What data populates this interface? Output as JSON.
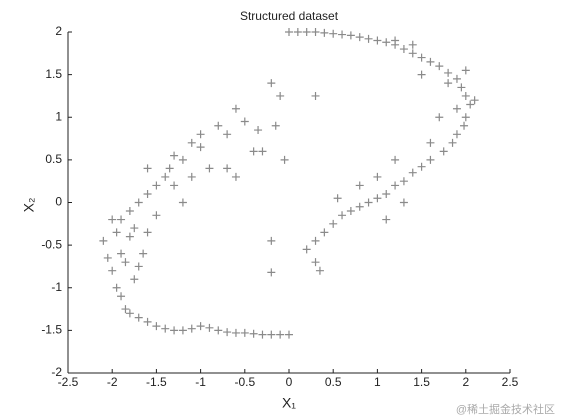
{
  "chart_data": {
    "type": "scatter",
    "title": "Structured dataset",
    "xlabel": "X₁",
    "ylabel": "X₂",
    "watermark": "@稀土掘金技术社区",
    "color": "#8a8a8a",
    "xlim": [
      -2.5,
      2.5
    ],
    "ylim": [
      -2,
      2
    ],
    "xticks": [
      -2.5,
      -2,
      -1.5,
      -1,
      -0.5,
      0,
      0.5,
      1,
      1.5,
      2,
      2.5
    ],
    "yticks": [
      -2,
      -1.5,
      -1,
      -0.5,
      0,
      0.5,
      1,
      1.5,
      2
    ],
    "x": [
      0,
      0.1,
      0.2,
      0.3,
      0.4,
      0.5,
      0.6,
      0.7,
      0.8,
      0.9,
      1.0,
      1.1,
      1.2,
      1.3,
      1.4,
      1.5,
      1.6,
      1.7,
      1.8,
      1.9,
      1.95,
      2.0,
      2.05,
      2.1,
      2.0,
      1.98,
      1.9,
      1.85,
      1.75,
      1.6,
      1.5,
      1.4,
      1.3,
      1.2,
      1.1,
      1.0,
      0.9,
      0.8,
      0.7,
      0.6,
      0.5,
      0.4,
      0.3,
      0.2,
      0.3,
      0.35,
      1.1,
      1.3,
      1.6,
      1.8,
      1.5,
      1.7,
      1.9,
      2.0,
      1.2,
      1.4,
      0.8,
      1.0,
      1.2,
      0.55,
      -0.2,
      -0.2,
      -0.05,
      -0.1,
      0.3,
      -0.3,
      -0.35,
      -0.15,
      -0.2,
      -0.6,
      -0.7,
      -0.8,
      -1.0,
      -1.0,
      -1.1,
      -1.2,
      -1.3,
      -1.35,
      -1.4,
      -1.5,
      -1.6,
      -1.7,
      -1.8,
      -1.9,
      -2.0,
      -1.6,
      -1.3,
      -1.1,
      -0.9,
      -0.7,
      -1.5,
      -1.2,
      -1.75,
      -1.6,
      -0.5,
      -0.4,
      -0.6,
      -2.1,
      -2.05,
      -2.0,
      -1.95,
      -1.9,
      -1.85,
      -1.8,
      -1.7,
      -1.6,
      -1.5,
      -1.4,
      -1.3,
      -1.2,
      -1.1,
      -1.0,
      -0.9,
      -0.8,
      -0.7,
      -0.6,
      -0.5,
      -0.4,
      -0.3,
      -0.2,
      -0.1,
      0,
      -1.9,
      -1.8,
      -1.75,
      -1.7,
      -1.65,
      -1.85,
      -1.95
    ],
    "values": [
      2,
      2,
      2,
      2,
      1.99,
      1.98,
      1.97,
      1.96,
      1.94,
      1.92,
      1.9,
      1.88,
      1.85,
      1.8,
      1.75,
      1.7,
      1.65,
      1.6,
      1.52,
      1.45,
      1.35,
      1.25,
      1.15,
      1.2,
      1.0,
      0.9,
      0.8,
      0.7,
      0.6,
      0.5,
      0.42,
      0.35,
      0.25,
      0.2,
      0.1,
      0.05,
      0,
      -0.05,
      -0.1,
      -0.15,
      -0.25,
      -0.35,
      -0.45,
      -0.55,
      -0.7,
      -0.8,
      -0.2,
      0.0,
      0.7,
      1.4,
      1.5,
      1.0,
      1.1,
      1.55,
      1.9,
      1.85,
      0.2,
      0.3,
      0.5,
      0.05,
      -0.45,
      -0.82,
      0.5,
      1.25,
      1.25,
      0.6,
      0.85,
      0.9,
      1.4,
      1.1,
      0.8,
      0.9,
      0.8,
      0.65,
      0.7,
      0.5,
      0.55,
      0.4,
      0.3,
      0.2,
      0.1,
      0.0,
      -0.1,
      -0.2,
      -0.2,
      0.4,
      0.2,
      0.3,
      0.4,
      0.4,
      -0.15,
      0.0,
      -0.3,
      -0.35,
      0.95,
      0.6,
      0.3,
      -0.45,
      -0.65,
      -0.8,
      -1.0,
      -1.1,
      -1.25,
      -1.3,
      -1.35,
      -1.4,
      -1.45,
      -1.48,
      -1.5,
      -1.5,
      -1.48,
      -1.45,
      -1.47,
      -1.5,
      -1.52,
      -1.53,
      -1.53,
      -1.54,
      -1.55,
      -1.55,
      -1.55,
      -1.55,
      -0.6,
      -0.4,
      -0.9,
      -0.75,
      -0.6,
      -0.7,
      -0.35
    ]
  }
}
